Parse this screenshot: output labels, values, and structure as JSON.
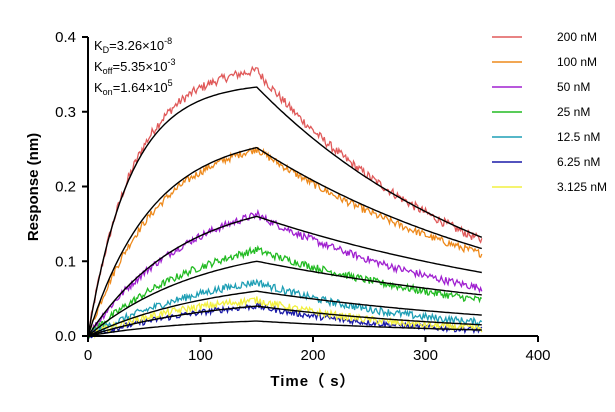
{
  "chart_data": {
    "type": "line",
    "title": "",
    "xlabel": "Time（ s）",
    "ylabel": "Response (nm)",
    "xlim": [
      0,
      400
    ],
    "ylim": [
      0,
      0.4
    ],
    "xticks": [
      "0",
      "100",
      "200",
      "300",
      "400"
    ],
    "yticks": [
      "0.0",
      "0.1",
      "0.2",
      "0.3",
      "0.4"
    ],
    "grid": false,
    "legend_position": "right",
    "association_end_s": 150,
    "dissociation_end_s": 350,
    "kinetics": {
      "kd_prefix": "K",
      "kd_sub": "D",
      "kd_value": "=3.26×10",
      "kd_exp": "-8",
      "koff_prefix": "K",
      "koff_sub": "off",
      "koff_value": "=5.35×10",
      "koff_exp": "-3",
      "kon_prefix": "K",
      "kon_sub": "on",
      "kon_value": "=1.64×10",
      "kon_exp": "5"
    },
    "fit_color": "#000000",
    "series": [
      {
        "name": "200 nM",
        "color": "#e05a5a",
        "peak": 0.355,
        "fit_peak": 0.333,
        "end": 0.128,
        "fit_end": 0.132,
        "k": 0.024,
        "noise": 0.006
      },
      {
        "name": "100 nM",
        "color": "#ee8a1c",
        "peak": 0.25,
        "fit_peak": 0.252,
        "end": 0.11,
        "fit_end": 0.117,
        "k": 0.016,
        "noise": 0.005
      },
      {
        "name": "50 nM",
        "color": "#a020d0",
        "peak": 0.162,
        "fit_peak": 0.16,
        "end": 0.064,
        "fit_end": 0.085,
        "k": 0.011,
        "noise": 0.005
      },
      {
        "name": "25 nM",
        "color": "#22bb22",
        "peak": 0.115,
        "fit_peak": 0.1,
        "end": 0.048,
        "fit_end": 0.055,
        "k": 0.009,
        "noise": 0.005
      },
      {
        "name": "12.5 nM",
        "color": "#1f9fb5",
        "peak": 0.072,
        "fit_peak": 0.06,
        "end": 0.018,
        "fit_end": 0.028,
        "k": 0.008,
        "noise": 0.005
      },
      {
        "name": "6.25 nM",
        "color": "#1a1aa8",
        "peak": 0.04,
        "fit_peak": 0.04,
        "end": 0.008,
        "fit_end": 0.015,
        "k": 0.008,
        "noise": 0.004
      },
      {
        "name": "3.125 nM",
        "color": "#f2f040",
        "peak": 0.048,
        "fit_peak": 0.02,
        "end": 0.01,
        "fit_end": 0.008,
        "k": 0.01,
        "noise": 0.005
      }
    ]
  }
}
